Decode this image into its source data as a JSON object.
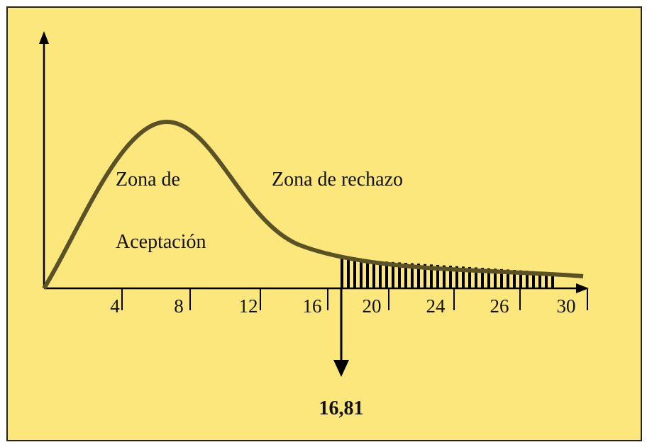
{
  "labels": {
    "acceptance_line1": "Zona de",
    "acceptance_line2": "Aceptación",
    "rejection": "Zona de rechazo",
    "critical_value": "16,81"
  },
  "ticks": [
    "4",
    "8",
    "12",
    "16",
    "20",
    "24",
    "26",
    "30"
  ]
}
